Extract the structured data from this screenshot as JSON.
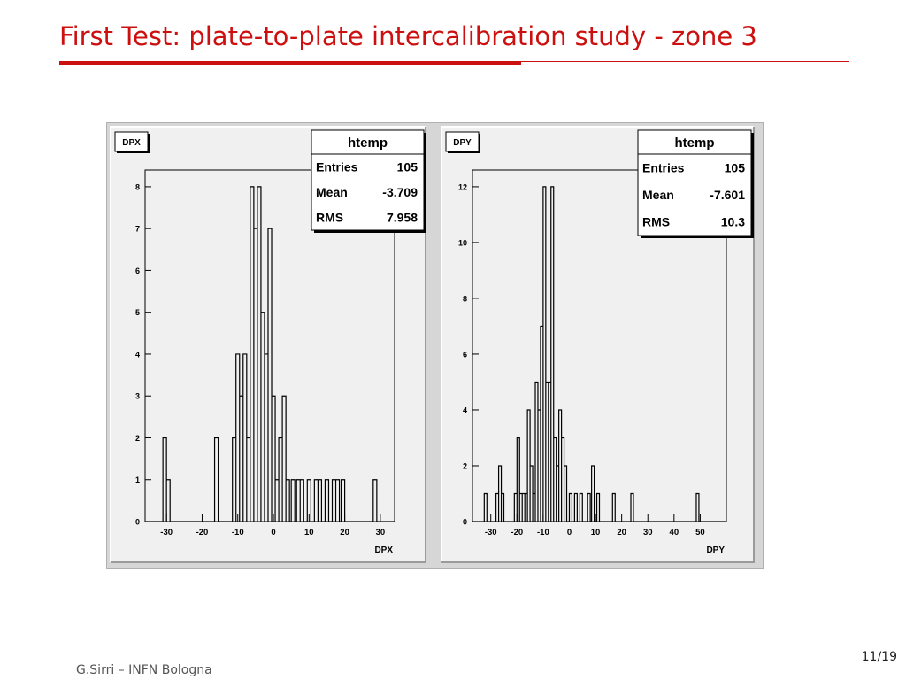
{
  "slide": {
    "title": "First Test: plate-to-plate intercalibration study - zone 3",
    "footer": "G.Sirri – INFN Bologna",
    "page": "11/19"
  },
  "colors": {
    "title": "#cc1010",
    "pad_background": "#f0f0f0",
    "frame": "#d6d6d6"
  },
  "chart_data": [
    {
      "type": "bar",
      "style": "step-histogram",
      "pad_label": "DPX",
      "xlabel": "DPX",
      "ylabel": "",
      "xlim": [
        -36,
        34
      ],
      "ylim": [
        0,
        8.4
      ],
      "xticks": [
        -30,
        -20,
        -10,
        0,
        10,
        20,
        30
      ],
      "yticks": [
        0,
        1,
        2,
        3,
        4,
        5,
        6,
        7,
        8
      ],
      "stats": {
        "title": "htemp",
        "rows": [
          {
            "label": "Entries",
            "value": "105"
          },
          {
            "label": "Mean",
            "value": "-3.709"
          },
          {
            "label": "RMS",
            "value": "7.958"
          }
        ]
      },
      "bins": [
        {
          "x": -30.5,
          "w": 1,
          "y": 2
        },
        {
          "x": -29.5,
          "w": 1,
          "y": 1
        },
        {
          "x": -16.0,
          "w": 1,
          "y": 2
        },
        {
          "x": -11.0,
          "w": 1,
          "y": 2
        },
        {
          "x": -10.0,
          "w": 1,
          "y": 4
        },
        {
          "x": -9.0,
          "w": 1,
          "y": 3
        },
        {
          "x": -8.0,
          "w": 1,
          "y": 4
        },
        {
          "x": -7.0,
          "w": 1,
          "y": 2
        },
        {
          "x": -6.0,
          "w": 1,
          "y": 8
        },
        {
          "x": -5.0,
          "w": 1,
          "y": 7
        },
        {
          "x": -4.0,
          "w": 1,
          "y": 8
        },
        {
          "x": -3.0,
          "w": 1,
          "y": 5
        },
        {
          "x": -2.0,
          "w": 1,
          "y": 4
        },
        {
          "x": -1.0,
          "w": 1,
          "y": 7
        },
        {
          "x": 0.0,
          "w": 1,
          "y": 3
        },
        {
          "x": 1.0,
          "w": 1,
          "y": 1
        },
        {
          "x": 2.0,
          "w": 1,
          "y": 2
        },
        {
          "x": 3.0,
          "w": 1,
          "y": 3
        },
        {
          "x": 4.0,
          "w": 1,
          "y": 1
        },
        {
          "x": 5.5,
          "w": 1,
          "y": 1
        },
        {
          "x": 7.0,
          "w": 1,
          "y": 1
        },
        {
          "x": 8.0,
          "w": 1,
          "y": 1
        },
        {
          "x": 10.0,
          "w": 1,
          "y": 1
        },
        {
          "x": 12.0,
          "w": 1,
          "y": 1
        },
        {
          "x": 13.0,
          "w": 1,
          "y": 1
        },
        {
          "x": 15.0,
          "w": 1,
          "y": 1
        },
        {
          "x": 17.0,
          "w": 1,
          "y": 1
        },
        {
          "x": 18.0,
          "w": 1,
          "y": 1
        },
        {
          "x": 19.5,
          "w": 1,
          "y": 1
        },
        {
          "x": 28.5,
          "w": 1,
          "y": 1
        }
      ]
    },
    {
      "type": "bar",
      "style": "step-histogram",
      "pad_label": "DPY",
      "xlabel": "DPY",
      "ylabel": "",
      "xlim": [
        -37,
        60
      ],
      "ylim": [
        0,
        12.6
      ],
      "xticks": [
        -30,
        -20,
        -10,
        0,
        10,
        20,
        30,
        40,
        50
      ],
      "yticks": [
        0,
        2,
        4,
        6,
        8,
        10,
        12
      ],
      "stats": {
        "title": "htemp",
        "rows": [
          {
            "label": "Entries",
            "value": "105"
          },
          {
            "label": "Mean",
            "value": "-7.601"
          },
          {
            "label": "RMS",
            "value": "10.3"
          }
        ]
      },
      "bins": [
        {
          "x": -32.0,
          "w": 1,
          "y": 1
        },
        {
          "x": -27.5,
          "w": 1,
          "y": 1
        },
        {
          "x": -26.5,
          "w": 1,
          "y": 2
        },
        {
          "x": -25.5,
          "w": 1,
          "y": 1
        },
        {
          "x": -20.5,
          "w": 1,
          "y": 1
        },
        {
          "x": -19.5,
          "w": 1,
          "y": 3
        },
        {
          "x": -18.5,
          "w": 1,
          "y": 1
        },
        {
          "x": -17.5,
          "w": 1,
          "y": 1
        },
        {
          "x": -16.5,
          "w": 1,
          "y": 1
        },
        {
          "x": -15.5,
          "w": 1,
          "y": 4
        },
        {
          "x": -14.5,
          "w": 1,
          "y": 2
        },
        {
          "x": -13.5,
          "w": 1,
          "y": 1
        },
        {
          "x": -12.5,
          "w": 1,
          "y": 5
        },
        {
          "x": -11.5,
          "w": 1,
          "y": 4
        },
        {
          "x": -10.5,
          "w": 1,
          "y": 7
        },
        {
          "x": -9.5,
          "w": 1,
          "y": 12
        },
        {
          "x": -8.5,
          "w": 1,
          "y": 5
        },
        {
          "x": -7.5,
          "w": 1,
          "y": 5
        },
        {
          "x": -6.5,
          "w": 1,
          "y": 12
        },
        {
          "x": -5.5,
          "w": 1,
          "y": 3
        },
        {
          "x": -4.5,
          "w": 1,
          "y": 2
        },
        {
          "x": -3.5,
          "w": 1,
          "y": 4
        },
        {
          "x": -2.5,
          "w": 1,
          "y": 3
        },
        {
          "x": -1.5,
          "w": 1,
          "y": 2
        },
        {
          "x": 0.5,
          "w": 1,
          "y": 1
        },
        {
          "x": 2.5,
          "w": 1,
          "y": 1
        },
        {
          "x": 4.5,
          "w": 1,
          "y": 1
        },
        {
          "x": 7.5,
          "w": 1,
          "y": 1
        },
        {
          "x": 9.0,
          "w": 1,
          "y": 2
        },
        {
          "x": 11.0,
          "w": 1,
          "y": 1
        },
        {
          "x": 17.0,
          "w": 1,
          "y": 1
        },
        {
          "x": 24.0,
          "w": 1,
          "y": 1
        },
        {
          "x": 49.0,
          "w": 1,
          "y": 1
        }
      ]
    }
  ]
}
